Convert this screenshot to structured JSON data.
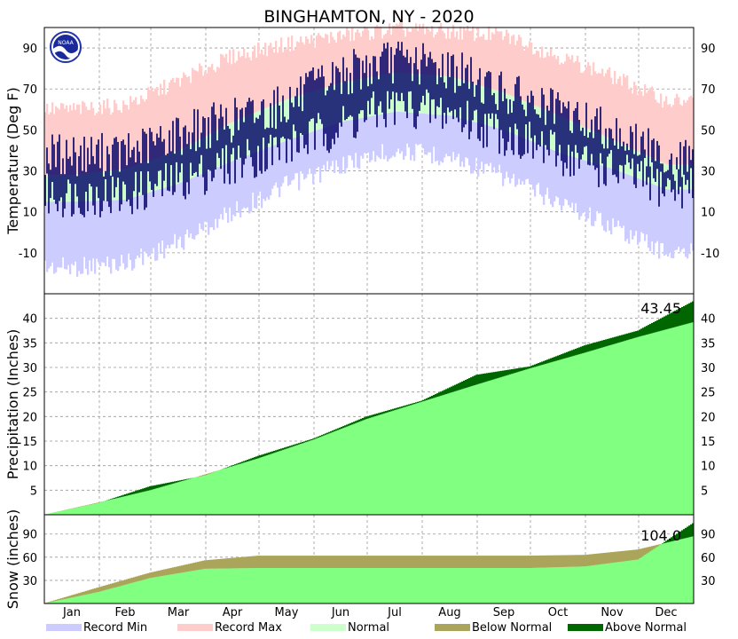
{
  "chart_data": {
    "title": "BINGHAMTON, NY - 2020",
    "months": [
      "Jan",
      "Feb",
      "Mar",
      "Apr",
      "May",
      "Jun",
      "Jul",
      "Aug",
      "Sep",
      "Oct",
      "Nov",
      "Dec"
    ],
    "panels": [
      {
        "type": "area",
        "ylabel": "Temperature (Deg F)",
        "ylim": [
          -30,
          100
        ],
        "ticks": [
          -10,
          10,
          30,
          50,
          70,
          90
        ],
        "monthly_approx": {
          "record_min": [
            -12,
            -10,
            0,
            15,
            28,
            38,
            45,
            42,
            32,
            20,
            8,
            -5
          ],
          "record_max": [
            56,
            58,
            70,
            82,
            88,
            92,
            95,
            94,
            92,
            82,
            72,
            60
          ],
          "normal_low": [
            15,
            16,
            24,
            35,
            45,
            54,
            59,
            57,
            50,
            39,
            31,
            21
          ],
          "normal_high": [
            28,
            31,
            40,
            54,
            65,
            73,
            78,
            76,
            68,
            57,
            45,
            33
          ],
          "actual_low": [
            18,
            18,
            25,
            34,
            42,
            52,
            62,
            58,
            48,
            38,
            30,
            22
          ],
          "actual_high": [
            38,
            38,
            48,
            55,
            63,
            77,
            84,
            80,
            68,
            58,
            50,
            35
          ]
        }
      },
      {
        "type": "area",
        "ylabel": "Precipitation (Inches)",
        "ylim": [
          0,
          45
        ],
        "ticks": [
          5,
          10,
          15,
          20,
          25,
          30,
          35,
          40
        ],
        "total_label": "43.45",
        "cumulative_normal_monthly": [
          0,
          2.5,
          5.0,
          8.2,
          11.5,
          15.3,
          19.5,
          23.0,
          26.5,
          29.8,
          33.0,
          36.2,
          39.2
        ],
        "cumulative_actual_monthly": [
          0,
          2.4,
          5.8,
          8.0,
          12.0,
          15.5,
          20.0,
          23.2,
          28.5,
          30.2,
          34.5,
          37.5,
          43.45
        ]
      },
      {
        "type": "area",
        "ylabel": "Snow (inches)",
        "ylim": [
          0,
          115
        ],
        "ticks": [
          30,
          60,
          90
        ],
        "total_label": "104.0",
        "cumulative_normal_monthly": [
          0,
          21,
          40,
          56,
          62,
          62,
          62,
          62,
          62,
          62,
          63,
          70,
          87
        ],
        "cumulative_actual_monthly": [
          0,
          15,
          33,
          45,
          46,
          46,
          46,
          46,
          46,
          46,
          48,
          57,
          104
        ]
      }
    ],
    "legend": [
      {
        "label": "Record Min",
        "color": "#ccccff"
      },
      {
        "label": "Record Max",
        "color": "#ffcccc"
      },
      {
        "label": "Normal",
        "color": "#ccffcc"
      },
      {
        "label": "Below Normal",
        "color": "#aaa55a"
      },
      {
        "label": "Above Normal",
        "color": "#006600"
      }
    ],
    "colors": {
      "record_min": "#ccccff",
      "record_max": "#ffcccc",
      "normal": "#ccffcc",
      "actual": "#000066",
      "cum_normal": "#80ff80",
      "below_normal": "#aaa55a",
      "above_normal": "#006600"
    },
    "logo_text": "NOAA"
  }
}
